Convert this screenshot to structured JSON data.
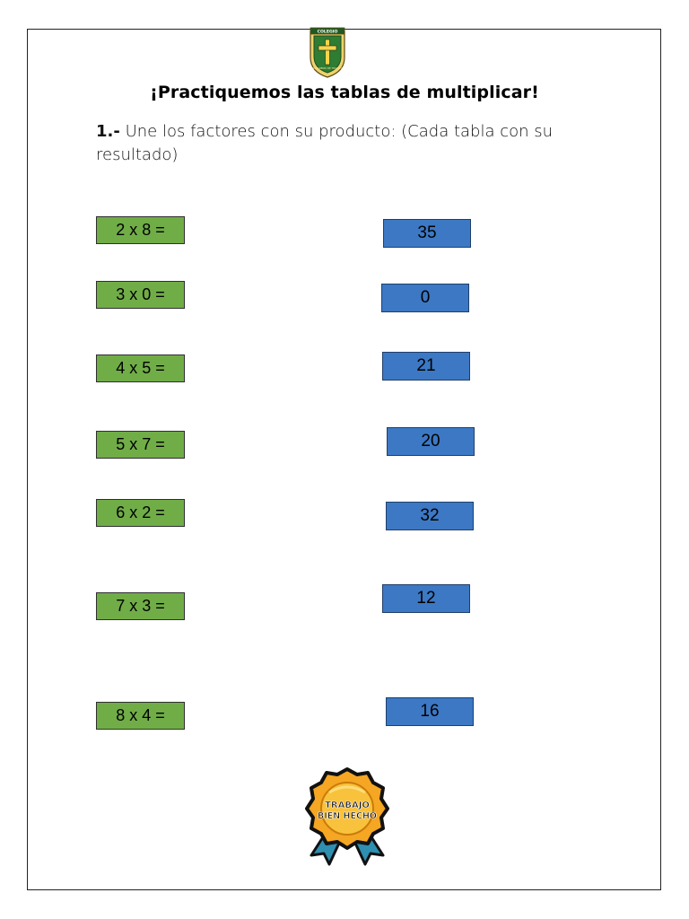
{
  "logo": {
    "top_text": "COLEGIO",
    "ring_text": "NAZARENO DE TRIUNFO",
    "icon": "cross-crest-icon"
  },
  "title": "¡Practiquemos las tablas de multiplicar!",
  "instruction": {
    "number": "1.-",
    "text": "Une los factores con su producto: (Cada tabla con su resultado)"
  },
  "factors": [
    "2 x 8 =",
    "3 x 0 =",
    "4 x 5 =",
    "5 x 7 =",
    "6 x 2 =",
    "7 x 3 =",
    "8 x 4 ="
  ],
  "products": [
    "35",
    "0",
    "21",
    "20",
    "32",
    "12",
    "16"
  ],
  "badge": {
    "line1": "TRABAJO",
    "line2": "BIEN HECHO",
    "icon": "award-ribbon-icon"
  },
  "colors": {
    "factor_box": "#70ad47",
    "product_box": "#3c78c4",
    "badge_gold": "#f5a623"
  }
}
